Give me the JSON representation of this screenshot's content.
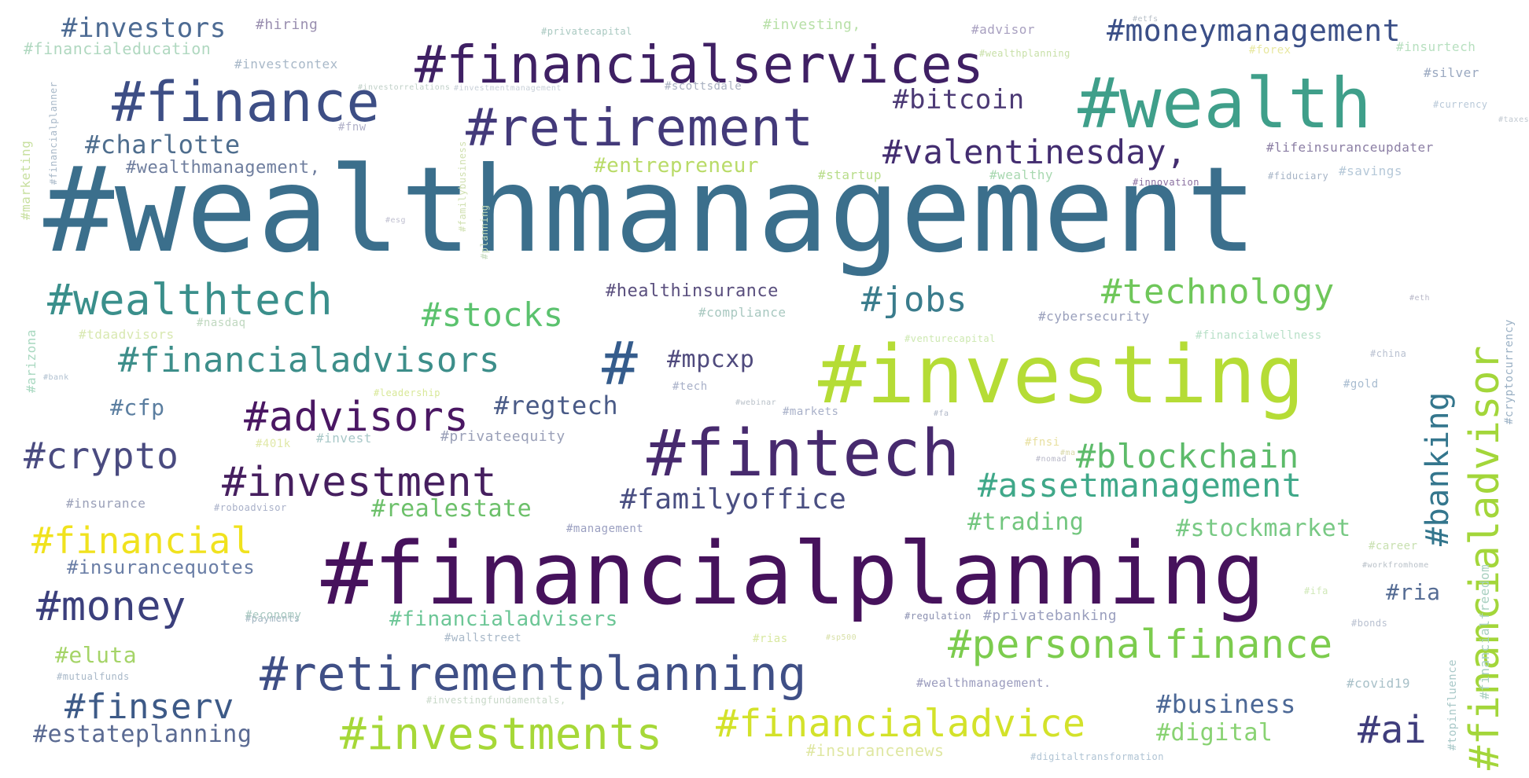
{
  "word_cloud": {
    "words": [
      {
        "id": "wealthmanagement",
        "text": "#wealthmanagement",
        "color": "#3b6f8c"
      },
      {
        "id": "financialplanning",
        "text": "#financialplanning",
        "color": "#46125c"
      },
      {
        "id": "investing",
        "text": "#investing",
        "color": "#b5dc36"
      },
      {
        "id": "fintech",
        "text": "#fintech",
        "color": "#472a6e"
      },
      {
        "id": "wealth",
        "text": "#wealth",
        "color": "#3f9f8a"
      },
      {
        "id": "financialservices",
        "text": "#financialservices",
        "color": "#3f2064"
      },
      {
        "id": "finance",
        "text": "#finance",
        "color": "#3d4e85"
      },
      {
        "id": "retirement",
        "text": "#retirement",
        "color": "#433a7a"
      },
      {
        "id": "retirementplanning",
        "text": "#retirementplanning",
        "color": "#3f4f86"
      },
      {
        "id": "hash",
        "text": "#",
        "color": "#355c8c"
      },
      {
        "id": "personalfinance",
        "text": "#personalfinance",
        "color": "#7ccc4e"
      },
      {
        "id": "investments",
        "text": "#investments",
        "color": "#a6d838"
      },
      {
        "id": "financialadvice",
        "text": "#financialadvice",
        "color": "#d3e22a"
      },
      {
        "id": "investment",
        "text": "#investment",
        "color": "#461f5f"
      },
      {
        "id": "advisors",
        "text": "#advisors",
        "color": "#4a1763"
      },
      {
        "id": "financialadvisor",
        "text": "#financialadvisor",
        "color": "#a3d63a"
      },
      {
        "id": "wealthtech",
        "text": "#wealthtech",
        "color": "#3a8f8b"
      },
      {
        "id": "technology",
        "text": "#technology",
        "color": "#6fc75a"
      },
      {
        "id": "blockchain",
        "text": "#blockchain",
        "color": "#5dbb6a"
      },
      {
        "id": "assetmanagement",
        "text": "#assetmanagement",
        "color": "#3fa889"
      },
      {
        "id": "money",
        "text": "#money",
        "color": "#3b3f7c"
      },
      {
        "id": "financial",
        "text": "#financial",
        "color": "#f0e21e"
      },
      {
        "id": "crypto",
        "text": "#crypto",
        "color": "#4a4b80"
      },
      {
        "id": "stocks",
        "text": "#stocks",
        "color": "#5bc26e"
      },
      {
        "id": "jobs",
        "text": "#jobs",
        "color": "#3a7c8c"
      },
      {
        "id": "financialadvisors",
        "text": "#financialadvisors",
        "color": "#3d8e8a"
      },
      {
        "id": "valentinesday",
        "text": "#valentinesday,",
        "color": "#432d70"
      },
      {
        "id": "moneymanagement",
        "text": "#moneymanagement",
        "color": "#3b4f87"
      },
      {
        "id": "banking",
        "text": "#banking",
        "color": "#34768d"
      },
      {
        "id": "ai",
        "text": "#ai",
        "color": "#3f3d7c"
      },
      {
        "id": "finserv",
        "text": "#finserv",
        "color": "#3d5a87"
      },
      {
        "id": "familyoffice",
        "text": "#familyoffice",
        "color": "#4a4f82"
      },
      {
        "id": "investors",
        "text": "#investors",
        "color": "#4d6b93"
      },
      {
        "id": "charlotte",
        "text": "#charlotte",
        "color": "#4f6e8e"
      },
      {
        "id": "bitcoin",
        "text": "#bitcoin",
        "color": "#4c3a75"
      },
      {
        "id": "mpcxp",
        "text": "#mpcxp",
        "color": "#4f4a7d"
      },
      {
        "id": "regtech",
        "text": "#regtech",
        "color": "#4a5b87"
      },
      {
        "id": "business",
        "text": "#business",
        "color": "#4c6896"
      },
      {
        "id": "estateplanning",
        "text": "#estateplanning",
        "color": "#5a6a92"
      },
      {
        "id": "realestate",
        "text": "#realestate",
        "color": "#6cc06a"
      },
      {
        "id": "trading",
        "text": "#trading",
        "color": "#72c67e"
      },
      {
        "id": "stockmarket",
        "text": "#stockmarket",
        "color": "#78c984"
      },
      {
        "id": "financialadvisers",
        "text": "#financialadvisers",
        "color": "#6cc696"
      },
      {
        "id": "digital",
        "text": "#digital",
        "color": "#88d272"
      },
      {
        "id": "cfp",
        "text": "#cfp",
        "color": "#5b7ea0"
      },
      {
        "id": "ria",
        "text": "#ria",
        "color": "#556c94"
      },
      {
        "id": "entrepreneur",
        "text": "#entrepreneur",
        "color": "#b9db68"
      },
      {
        "id": "eluta",
        "text": "#eluta",
        "color": "#a5d468"
      },
      {
        "id": "insurancequotes",
        "text": "#insurancequotes",
        "color": "#6a7ea6"
      },
      {
        "id": "healthinsurance",
        "text": "#healthinsurance",
        "color": "#5a4f7e"
      },
      {
        "id": "wealthmanagement_comma",
        "text": "#wealthmanagement,",
        "color": "#6f7e9e"
      },
      {
        "id": "insurancenews",
        "text": "#insurancenews",
        "color": "#dfe7a2"
      },
      {
        "id": "lifeinsuranceupdater",
        "text": "#lifeinsuranceupdater",
        "color": "#8b7ea4"
      },
      {
        "id": "privateequity",
        "text": "#privateequity",
        "color": "#9aa0b8"
      },
      {
        "id": "management",
        "text": "#management",
        "color": "#9a9fc0"
      },
      {
        "id": "wealthmanagement_dot",
        "text": "#wealthmanagement.",
        "color": "#9a9bbd"
      },
      {
        "id": "regulation",
        "text": "#regulation",
        "color": "#8a8fb0"
      },
      {
        "id": "privatebanking",
        "text": "#privatebanking",
        "color": "#9a9fbe"
      },
      {
        "id": "cybersecurity",
        "text": "#cybersecurity",
        "color": "#9aa0bc"
      },
      {
        "id": "compliance",
        "text": "#compliance",
        "color": "#a8c8c0"
      },
      {
        "id": "startup",
        "text": "#startup",
        "color": "#b8dd8a"
      },
      {
        "id": "wealthy",
        "text": "#wealthy",
        "color": "#a8d8b0"
      },
      {
        "id": "innovation",
        "text": "#innovation",
        "color": "#8a6fa0"
      },
      {
        "id": "fiduciary",
        "text": "#fiduciary",
        "color": "#a6b4c6"
      },
      {
        "id": "savings",
        "text": "#savings",
        "color": "#b5c8d8"
      },
      {
        "id": "silver",
        "text": "#silver",
        "color": "#9aa8c0"
      },
      {
        "id": "currency",
        "text": "#currency",
        "color": "#b8c8d8"
      },
      {
        "id": "cryptocurrency",
        "text": "#cryptocurrency",
        "color": "#9ab0c4"
      },
      {
        "id": "financialwellness",
        "text": "#financialwellness",
        "color": "#b8e0c8"
      },
      {
        "id": "gold",
        "text": "#gold",
        "color": "#a8bcd0"
      },
      {
        "id": "venturecapital",
        "text": "#venturecapital",
        "color": "#cde8b0"
      },
      {
        "id": "tech",
        "text": "#tech",
        "color": "#a8b0c8"
      },
      {
        "id": "markets",
        "text": "#markets",
        "color": "#a8b0c8"
      },
      {
        "id": "leadership",
        "text": "#leadership",
        "color": "#d8e898"
      },
      {
        "id": "invest",
        "text": "#invest",
        "color": "#a8c8c8"
      },
      {
        "id": "insurance",
        "text": "#insurance",
        "color": "#9aa0b8"
      },
      {
        "id": "roboadvisor",
        "text": "#roboadvisor",
        "color": "#a8b0c8"
      },
      {
        "id": "payments",
        "text": "#payments",
        "color": "#a0b4c0"
      },
      {
        "id": "economy",
        "text": "#economy",
        "color": "#a8c8c0"
      },
      {
        "id": "mutualfunds",
        "text": "#mutualfunds",
        "color": "#a8b8c8"
      },
      {
        "id": "wallstreet",
        "text": "#wallstreet",
        "color": "#a8b8c8"
      },
      {
        "id": "rias",
        "text": "#rias",
        "color": "#d8e8a0"
      },
      {
        "id": "covid19",
        "text": "#covid19",
        "color": "#a8c0c8"
      },
      {
        "id": "topinfluence",
        "text": "#topinfluence",
        "color": "#a8c8c8"
      },
      {
        "id": "financialfreedom",
        "text": "#financialfreedom",
        "color": "#a8d0c0"
      },
      {
        "id": "digitaltransformation",
        "text": "#digitaltransformation",
        "color": "#b0c4d4"
      },
      {
        "id": "investingfundamentals",
        "text": "#investingfundamentals,",
        "color": "#c8d8c8"
      },
      {
        "id": "hiring",
        "text": "#hiring",
        "color": "#9a8fb0"
      },
      {
        "id": "privatecapital",
        "text": "#privatecapital",
        "color": "#a8c8c0"
      },
      {
        "id": "investing_comma",
        "text": "#investing,",
        "color": "#b8e0a8"
      },
      {
        "id": "advisor",
        "text": "#advisor",
        "color": "#a8a0c0"
      },
      {
        "id": "financialeducation",
        "text": "#financialeducation",
        "color": "#b0d8c0"
      },
      {
        "id": "investcontext",
        "text": "#investcontex",
        "color": "#a8b8c8"
      },
      {
        "id": "forex",
        "text": "#forex",
        "color": "#e8e8a0"
      },
      {
        "id": "insurtech",
        "text": "#insurtech",
        "color": "#b8e0c0"
      },
      {
        "id": "wealthplanning",
        "text": "#wealthplanning",
        "color": "#c8e0a8"
      },
      {
        "id": "scottsdale",
        "text": "#scottsdale",
        "color": "#a8b0c0"
      },
      {
        "id": "investmentmanagement",
        "text": "#investmentmanagement",
        "color": "#c8d0d8"
      },
      {
        "id": "fnw",
        "text": "#fnw",
        "color": "#b0b0c8"
      },
      {
        "id": "marketing",
        "text": "#marketing",
        "color": "#c8e0a0"
      },
      {
        "id": "financialplanner",
        "text": "#financialplanner",
        "color": "#a8b8c8"
      },
      {
        "id": "arizona",
        "text": "#arizona",
        "color": "#a8d8c0"
      },
      {
        "id": "tdaadvisors",
        "text": "#tdaadvisors",
        "color": "#d8e8b0"
      },
      {
        "id": "nasdaq",
        "text": "#nasdaq",
        "color": "#c0d8c0"
      },
      {
        "id": "401k",
        "text": "#401k",
        "color": "#e0e8a8"
      },
      {
        "id": "familybusiness",
        "text": "#familybusiness",
        "color": "#d0e0b0"
      },
      {
        "id": "planning",
        "text": "#planning",
        "color": "#c0d8b8"
      },
      {
        "id": "bank",
        "text": "#bank",
        "color": "#b0c0d0"
      },
      {
        "id": "esg",
        "text": "#esg",
        "color": "#c0c0d0"
      },
      {
        "id": "fnsi",
        "text": "#fnsi",
        "color": "#e8e0a0"
      },
      {
        "id": "ma",
        "text": "#ma",
        "color": "#d8d8a8"
      },
      {
        "id": "china",
        "text": "#china",
        "color": "#b8c0d0"
      },
      {
        "id": "bonds",
        "text": "#bonds",
        "color": "#b8c0d0"
      },
      {
        "id": "career",
        "text": "#career",
        "color": "#c8e0b0"
      },
      {
        "id": "workfromhome",
        "text": "#workfromhome",
        "color": "#b8c0c8"
      },
      {
        "id": "ifa",
        "text": "#ifa",
        "color": "#d0e8b8"
      },
      {
        "id": "gazette",
        "text": "#nomad",
        "color": "#b8b8c8"
      },
      {
        "id": "sp500",
        "text": "#sp500",
        "color": "#d8e0a8"
      },
      {
        "id": "webinar",
        "text": "#webinar",
        "color": "#b8c0c8"
      },
      {
        "id": "fa",
        "text": "#fa",
        "color": "#b0b8c8"
      },
      {
        "id": "eth",
        "text": "#eth",
        "color": "#b8b8c8"
      },
      {
        "id": "stoch",
        "text": "#etfs",
        "color": "#b8c0c8"
      },
      {
        "id": "invest2",
        "text": "#investorrelations",
        "color": "#c0d0c8"
      },
      {
        "id": "taxes",
        "text": "#taxes",
        "color": "#c0c8d0"
      }
    ]
  }
}
